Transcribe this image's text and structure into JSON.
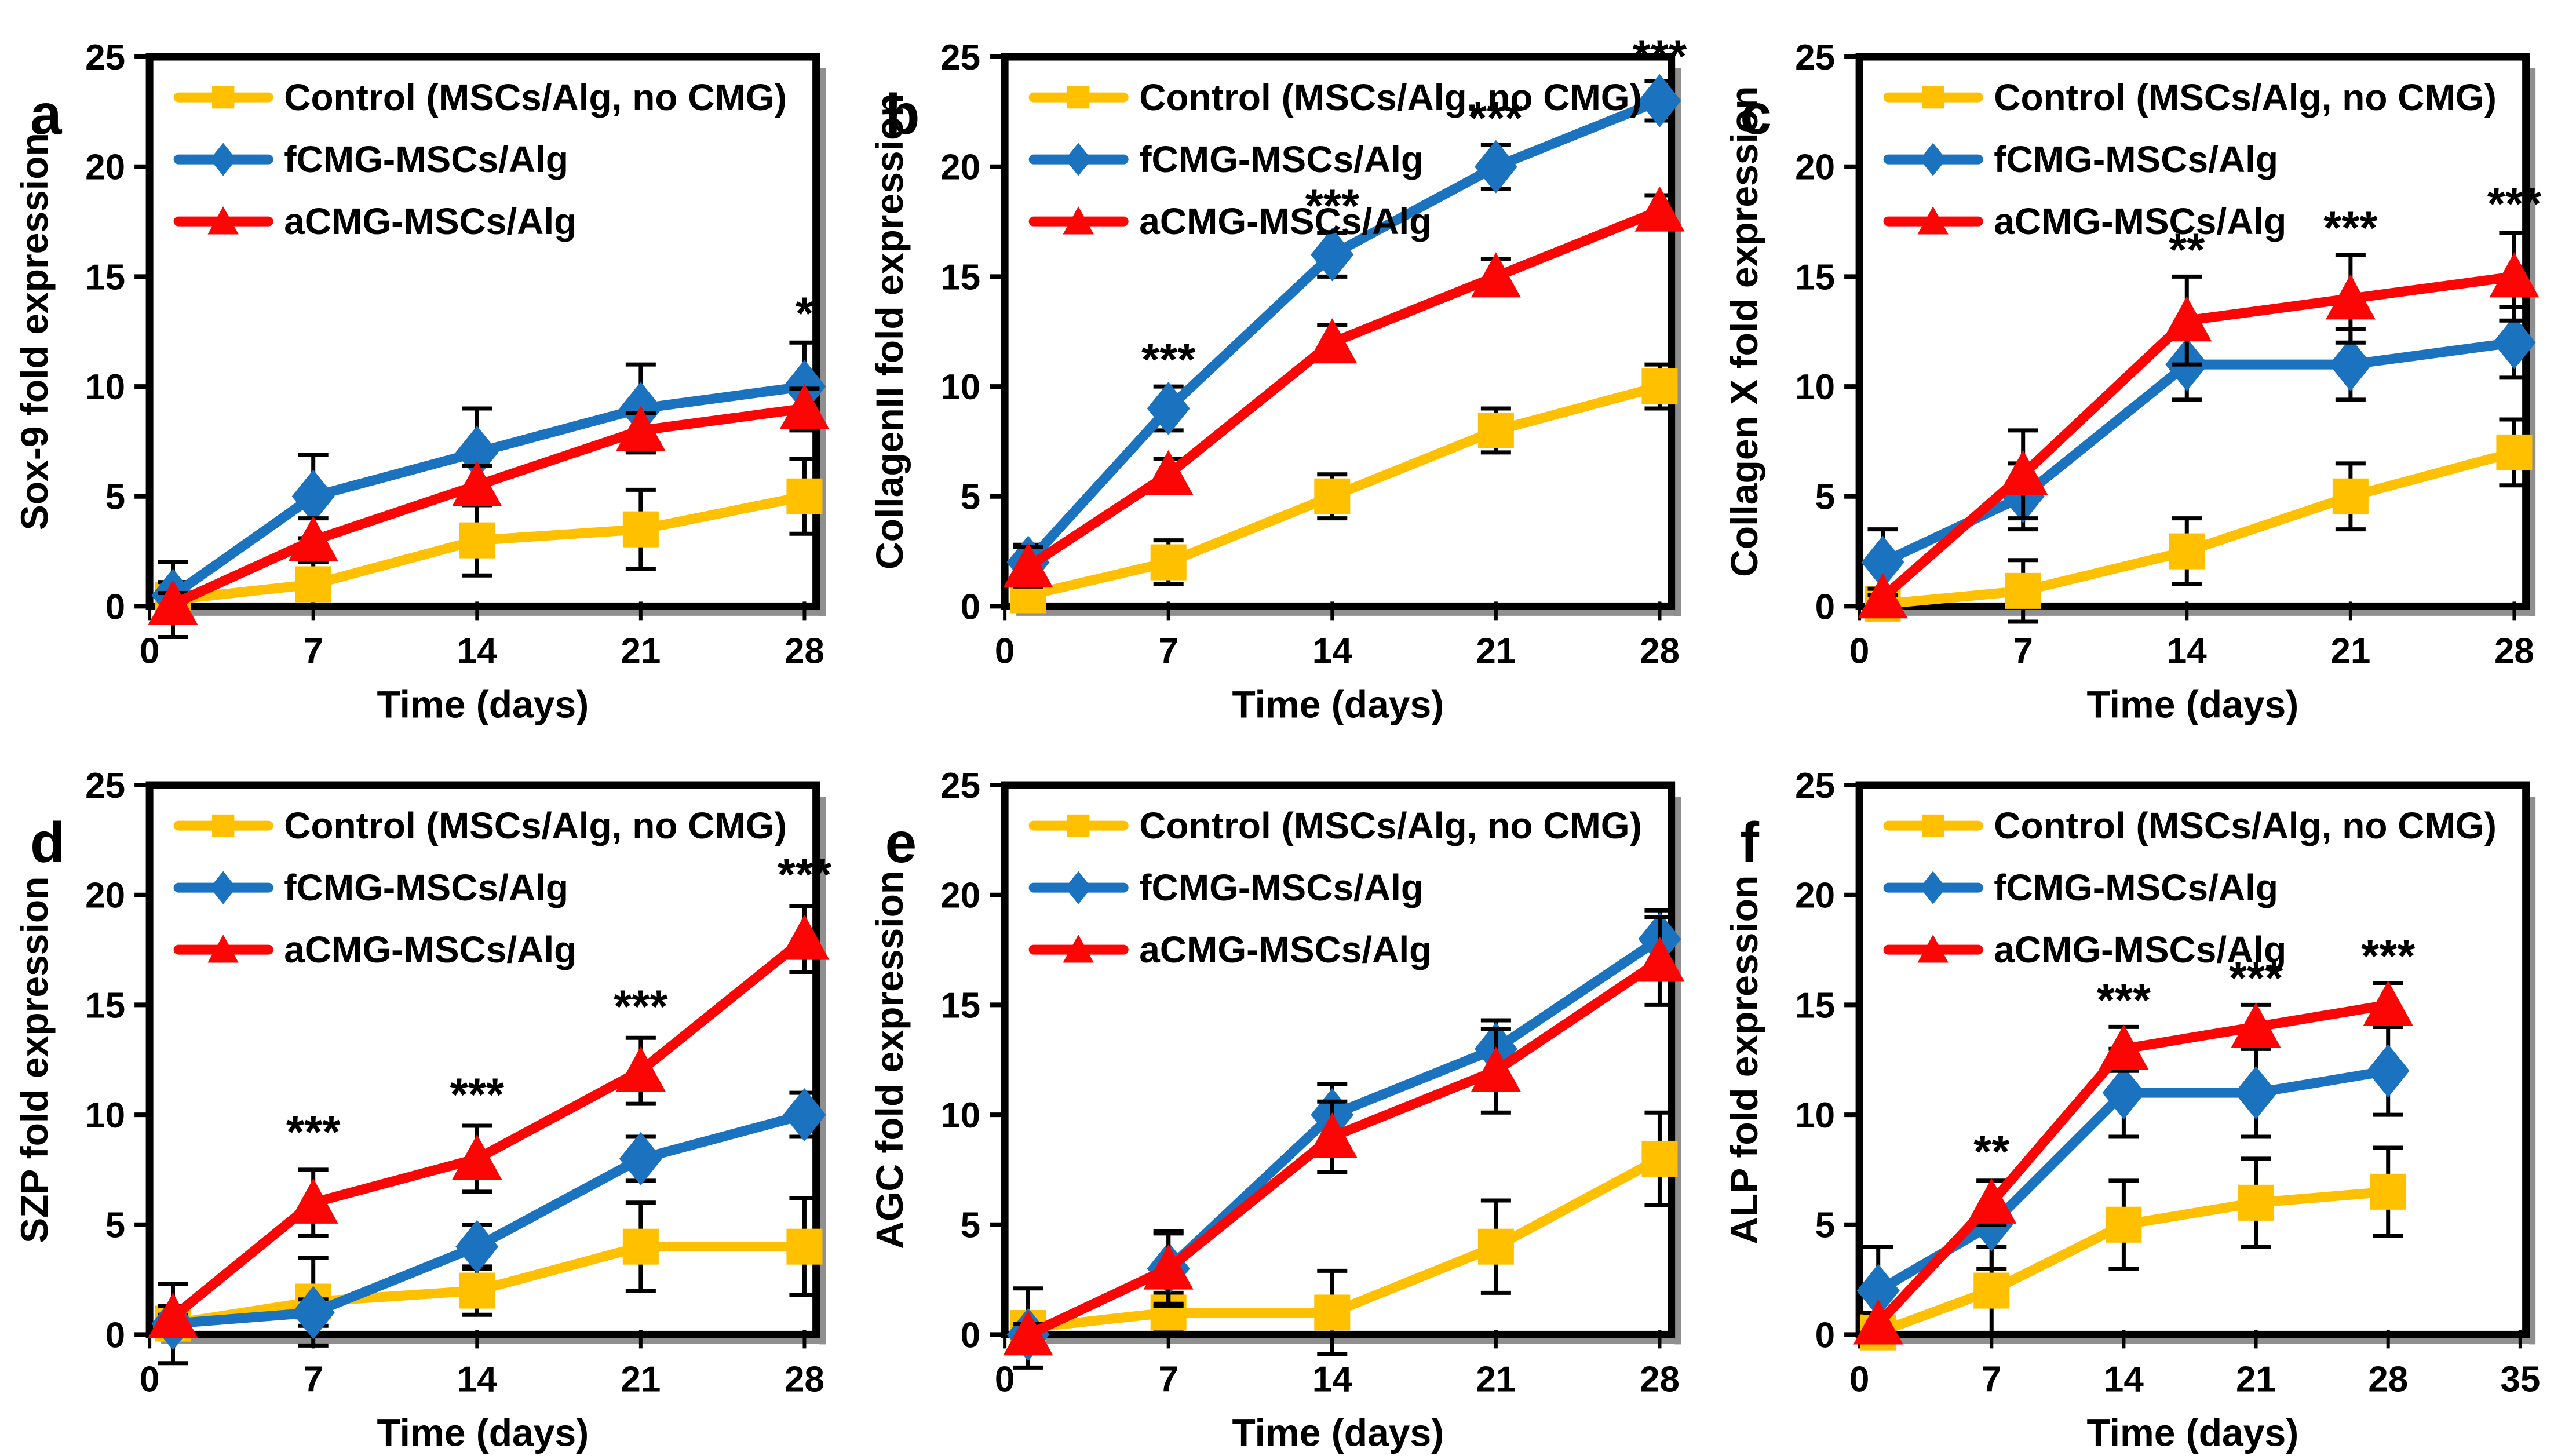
{
  "figure": {
    "description": "Six-panel qRT-PCR fold expression time-course figure",
    "palette": {
      "control": "#FFC000",
      "fcmg": "#1B72BE",
      "acmg": "#FB0505",
      "axis": "#000000",
      "shadow": "#8F8F8F",
      "background": "#FFFFFF"
    },
    "legend_labels": [
      "Control (MSCs/Alg, no CMG)",
      "fCMG-MSCs/Alg",
      "aCMG-MSCs/Alg"
    ]
  },
  "chart_data": [
    {
      "letter": "a",
      "type": "line",
      "title": "",
      "xlabel": "Time (days)",
      "ylabel": "Sox-9 fold expression",
      "x": [
        1,
        7,
        14,
        21,
        28
      ],
      "xticks": [
        0,
        7,
        14,
        21,
        28
      ],
      "xlim": [
        0,
        28.5
      ],
      "ylim": [
        0,
        25
      ],
      "yticks": [
        0,
        5,
        10,
        15,
        20,
        25
      ],
      "grid": false,
      "legend_position": "top-left-inside",
      "series": [
        {
          "name": "Control (MSCs/Alg, no CMG)",
          "color": "#FFC000",
          "marker": "square",
          "values": [
            0.3,
            1,
            3,
            3.5,
            5
          ],
          "errors": [
            1.7,
            1.0,
            1.6,
            1.8,
            1.7
          ]
        },
        {
          "name": "fCMG-MSCs/Alg",
          "color": "#1B72BE",
          "marker": "diamond",
          "values": [
            0.5,
            5,
            7,
            9,
            10
          ],
          "errors": [
            0.6,
            1.9,
            2.0,
            2.0,
            2.0
          ]
        },
        {
          "name": "aCMG-MSCs/Alg",
          "color": "#FB0505",
          "marker": "triangle",
          "values": [
            0.1,
            3,
            5.5,
            8,
            9
          ],
          "errors": [
            0.5,
            1.0,
            0.9,
            0.8,
            0.9
          ]
        }
      ],
      "annotations": [
        {
          "x": 28,
          "y": 12.6,
          "text": "*"
        }
      ]
    },
    {
      "letter": "b",
      "type": "line",
      "title": "",
      "xlabel": "Time (days)",
      "ylabel": "CollagenII fold expression",
      "x": [
        1,
        7,
        14,
        21,
        28
      ],
      "xticks": [
        0,
        7,
        14,
        21,
        28
      ],
      "xlim": [
        0,
        28.5
      ],
      "ylim": [
        0,
        25
      ],
      "yticks": [
        0,
        5,
        10,
        15,
        20,
        25
      ],
      "grid": false,
      "legend_position": "top-left-inside",
      "series": [
        {
          "name": "Control (MSCs/Alg, no CMG)",
          "color": "#FFC000",
          "marker": "square",
          "values": [
            0.5,
            2,
            5,
            8,
            10
          ],
          "errors": [
            0.6,
            1.0,
            1.0,
            1.0,
            1.0
          ]
        },
        {
          "name": "fCMG-MSCs/Alg",
          "color": "#1B72BE",
          "marker": "diamond",
          "values": [
            2,
            9,
            16,
            20,
            23
          ],
          "errors": [
            0.8,
            1.0,
            1.0,
            1.0,
            0.9
          ]
        },
        {
          "name": "aCMG-MSCs/Alg",
          "color": "#FB0505",
          "marker": "triangle",
          "values": [
            1.8,
            6,
            12,
            15,
            18
          ],
          "errors": [
            0.9,
            0.7,
            0.8,
            0.8,
            0.7
          ]
        }
      ],
      "annotations": [
        {
          "x": 7,
          "y": 10.5,
          "text": "***"
        },
        {
          "x": 14,
          "y": 17.5,
          "text": "***"
        },
        {
          "x": 21,
          "y": 21.5,
          "text": "***"
        },
        {
          "x": 28,
          "y": 24.3,
          "text": "***"
        }
      ]
    },
    {
      "letter": "c",
      "type": "line",
      "title": "",
      "xlabel": "Time (days)",
      "ylabel": "Collagen X fold expression",
      "x": [
        1,
        7,
        14,
        21,
        28
      ],
      "xticks": [
        0,
        7,
        14,
        21,
        28
      ],
      "xlim": [
        0,
        28.5
      ],
      "ylim": [
        0,
        25
      ],
      "yticks": [
        0,
        5,
        10,
        15,
        20,
        25
      ],
      "grid": false,
      "legend_position": "top-left-inside",
      "series": [
        {
          "name": "Control (MSCs/Alg, no CMG)",
          "color": "#FFC000",
          "marker": "square",
          "values": [
            0.1,
            0.7,
            2.5,
            5,
            7
          ],
          "errors": [
            0.5,
            1.4,
            1.5,
            1.5,
            1.5
          ]
        },
        {
          "name": "fCMG-MSCs/Alg",
          "color": "#1B72BE",
          "marker": "diamond",
          "values": [
            2,
            5,
            11,
            11,
            12
          ],
          "errors": [
            1.5,
            1.5,
            1.6,
            1.6,
            1.6
          ]
        },
        {
          "name": "aCMG-MSCs/Alg",
          "color": "#FB0505",
          "marker": "triangle",
          "values": [
            0.4,
            6,
            13,
            14,
            15
          ],
          "errors": [
            0.4,
            2.0,
            2.0,
            2.0,
            2.0
          ]
        }
      ],
      "annotations": [
        {
          "x": 14,
          "y": 15.5,
          "text": "**"
        },
        {
          "x": 21,
          "y": 16.5,
          "text": "***"
        },
        {
          "x": 28,
          "y": 17.6,
          "text": "***"
        }
      ]
    },
    {
      "letter": "d",
      "type": "line",
      "title": "",
      "xlabel": "Time (days)",
      "ylabel": "SZP fold expression",
      "x": [
        1,
        7,
        14,
        21,
        28
      ],
      "xticks": [
        0,
        7,
        14,
        21,
        28
      ],
      "xlim": [
        0,
        28.5
      ],
      "ylim": [
        0,
        25
      ],
      "yticks": [
        0,
        5,
        10,
        15,
        20,
        25
      ],
      "grid": false,
      "legend_position": "top-left-inside",
      "series": [
        {
          "name": "Control (MSCs/Alg, no CMG)",
          "color": "#FFC000",
          "marker": "square",
          "values": [
            0.5,
            1.5,
            2,
            4,
            4
          ],
          "errors": [
            1.8,
            2.0,
            1.1,
            2.0,
            2.2
          ]
        },
        {
          "name": "fCMG-MSCs/Alg",
          "color": "#1B72BE",
          "marker": "diamond",
          "values": [
            0.5,
            1,
            4,
            8,
            10
          ],
          "errors": [
            0.4,
            0.6,
            1.0,
            1.0,
            1.0
          ]
        },
        {
          "name": "aCMG-MSCs/Alg",
          "color": "#FB0505",
          "marker": "triangle",
          "values": [
            0.8,
            6,
            8,
            12,
            18
          ],
          "errors": [
            0.5,
            1.5,
            1.5,
            1.5,
            1.5
          ]
        }
      ],
      "annotations": [
        {
          "x": 7,
          "y": 8.5,
          "text": "***"
        },
        {
          "x": 14,
          "y": 10.2,
          "text": "***"
        },
        {
          "x": 21,
          "y": 14.2,
          "text": "***"
        },
        {
          "x": 28,
          "y": 20.2,
          "text": "***"
        }
      ]
    },
    {
      "letter": "e",
      "type": "line",
      "title": "",
      "xlabel": "Time (days)",
      "ylabel": "AGC fold expression",
      "x": [
        1,
        7,
        14,
        21,
        28
      ],
      "xticks": [
        0,
        7,
        14,
        21,
        28
      ],
      "xlim": [
        0,
        28.5
      ],
      "ylim": [
        0,
        25
      ],
      "yticks": [
        0,
        5,
        10,
        15,
        20,
        25
      ],
      "grid": false,
      "legend_position": "top-left-inside",
      "series": [
        {
          "name": "Control (MSCs/Alg, no CMG)",
          "color": "#FFC000",
          "marker": "square",
          "values": [
            0.3,
            1,
            1,
            4,
            8
          ],
          "errors": [
            1.8,
            0.9,
            1.9,
            2.1,
            2.1
          ]
        },
        {
          "name": "fCMG-MSCs/Alg",
          "color": "#1B72BE",
          "marker": "diamond",
          "values": [
            0,
            3,
            10,
            13,
            18
          ],
          "errors": [
            0.5,
            1.7,
            1.4,
            1.3,
            1.3
          ]
        },
        {
          "name": "aCMG-MSCs/Alg",
          "color": "#FB0505",
          "marker": "triangle",
          "values": [
            0,
            3,
            9,
            12,
            17
          ],
          "errors": [
            0.5,
            1.6,
            1.6,
            1.9,
            2.0
          ]
        }
      ],
      "annotations": []
    },
    {
      "letter": "f",
      "type": "line",
      "title": "",
      "xlabel": "Time (days)",
      "ylabel": "ALP fold expression",
      "x": [
        1,
        7,
        14,
        21,
        28
      ],
      "xticks": [
        0,
        7,
        14,
        21,
        28,
        35
      ],
      "xlim": [
        0,
        35.3
      ],
      "ylim": [
        0,
        25
      ],
      "yticks": [
        0,
        5,
        10,
        15,
        20,
        25
      ],
      "grid": false,
      "legend_position": "top-left-inside",
      "series": [
        {
          "name": "Control (MSCs/Alg, no CMG)",
          "color": "#FFC000",
          "marker": "square",
          "values": [
            0.1,
            2,
            5,
            6,
            6.5
          ],
          "errors": [
            0.4,
            2.0,
            2.0,
            2.0,
            2.0
          ]
        },
        {
          "name": "fCMG-MSCs/Alg",
          "color": "#1B72BE",
          "marker": "diamond",
          "values": [
            2,
            5,
            11,
            11,
            12
          ],
          "errors": [
            2.0,
            2.0,
            2.0,
            2.0,
            2.0
          ]
        },
        {
          "name": "aCMG-MSCs/Alg",
          "color": "#FB0505",
          "marker": "triangle",
          "values": [
            0.5,
            6,
            13,
            14,
            15
          ],
          "errors": [
            0.5,
            1.0,
            1.0,
            1.0,
            1.0
          ]
        }
      ],
      "annotations": [
        {
          "x": 7,
          "y": 7.6,
          "text": "**"
        },
        {
          "x": 14,
          "y": 14.5,
          "text": "***"
        },
        {
          "x": 21,
          "y": 15.5,
          "text": "***"
        },
        {
          "x": 28,
          "y": 16.5,
          "text": "***"
        }
      ]
    }
  ]
}
